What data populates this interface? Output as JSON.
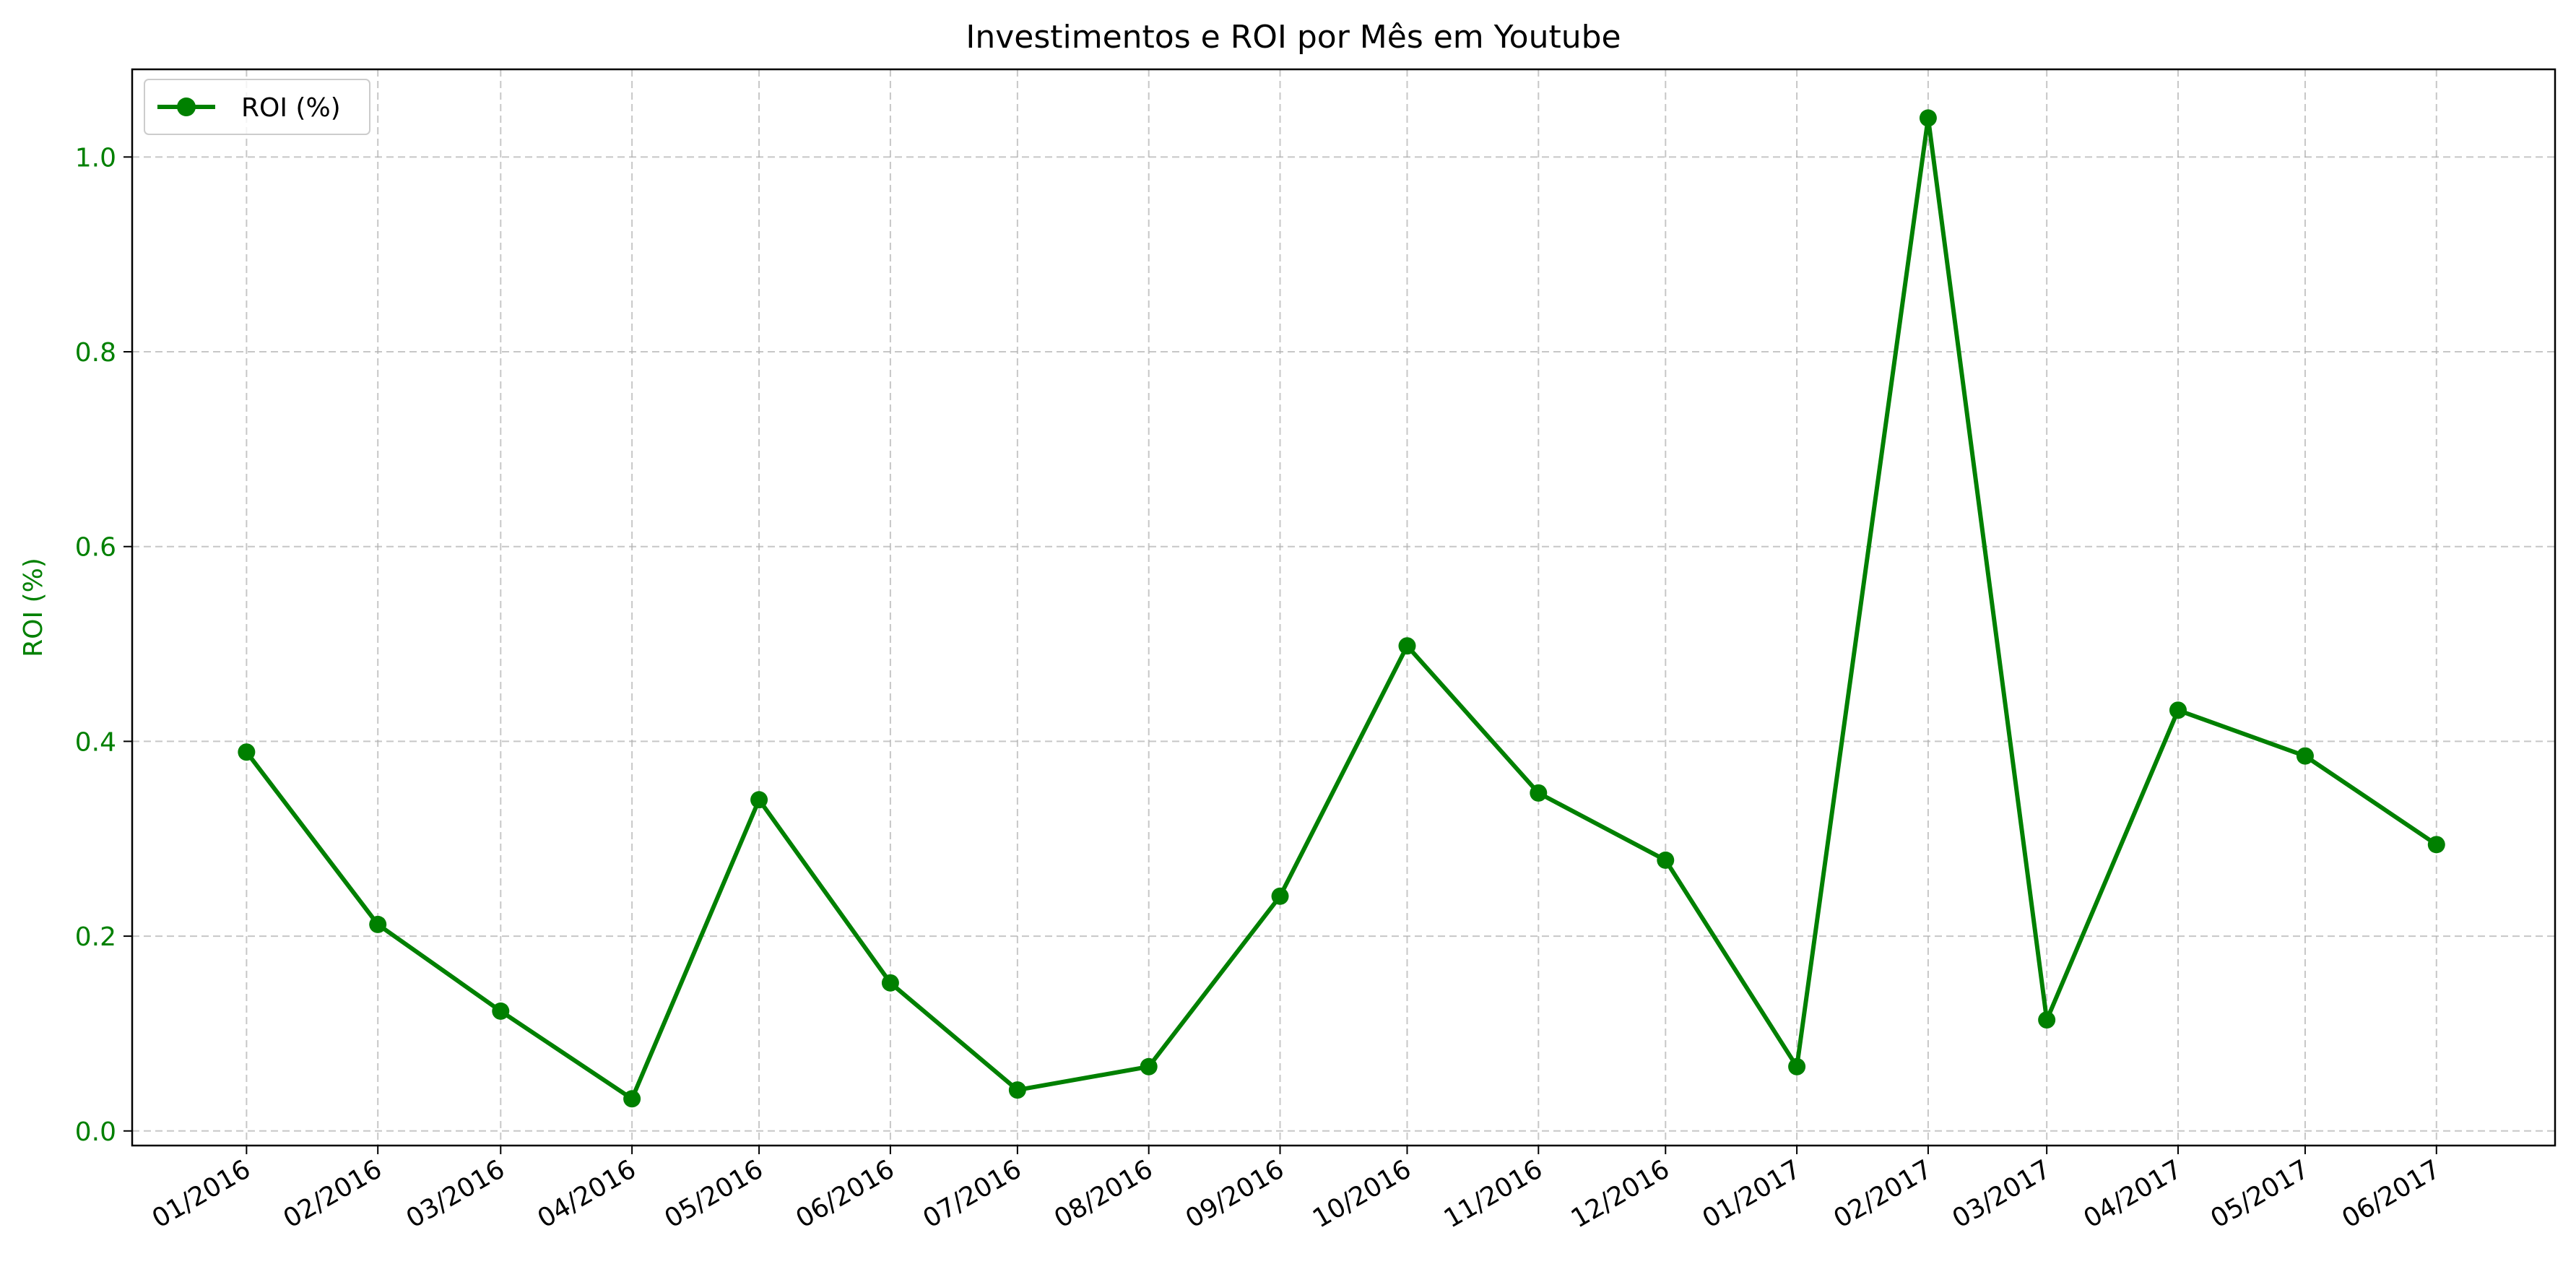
{
  "chart_data": {
    "type": "line",
    "title": "Investimentos e ROI por Mês em Youtube",
    "xlabel": "",
    "ylabel": "ROI (%)",
    "categories": [
      "01/2016",
      "02/2016",
      "03/2016",
      "04/2016",
      "05/2016",
      "06/2016",
      "07/2016",
      "08/2016",
      "09/2016",
      "10/2016",
      "11/2016",
      "12/2016",
      "01/2017",
      "02/2017",
      "03/2017",
      "04/2017",
      "05/2017",
      "06/2017"
    ],
    "series": [
      {
        "name": "ROI (%)",
        "color": "#008000",
        "marker": "circle",
        "values": [
          0.389,
          0.212,
          0.123,
          0.033,
          0.34,
          0.152,
          0.042,
          0.066,
          0.241,
          0.498,
          0.347,
          0.278,
          0.066,
          1.04,
          0.114,
          0.432,
          0.385,
          0.294
        ]
      }
    ],
    "x_dates": [
      "2016-01-01",
      "2016-02-01",
      "2016-03-01",
      "2016-04-01",
      "2016-05-01",
      "2016-06-01",
      "2016-07-01",
      "2016-08-01",
      "2016-09-01",
      "2016-10-01",
      "2016-11-01",
      "2016-12-01",
      "2017-01-01",
      "2017-02-01",
      "2017-03-01",
      "2017-04-01",
      "2017-05-01",
      "2017-06-01"
    ],
    "xlim": [
      "2015-12-05",
      "2017-06-29"
    ],
    "ylim": [
      -0.015,
      1.09
    ],
    "yticks": [
      0.0,
      0.2,
      0.4,
      0.6,
      0.8,
      1.0
    ],
    "ytick_labels": [
      "0.0",
      "0.2",
      "0.4",
      "0.6",
      "0.8",
      "1.0"
    ],
    "grid": true,
    "legend": {
      "position": "upper left",
      "entries": [
        "ROI (%)"
      ]
    },
    "ylabel_color": "#008000",
    "ytick_color": "#008000"
  }
}
